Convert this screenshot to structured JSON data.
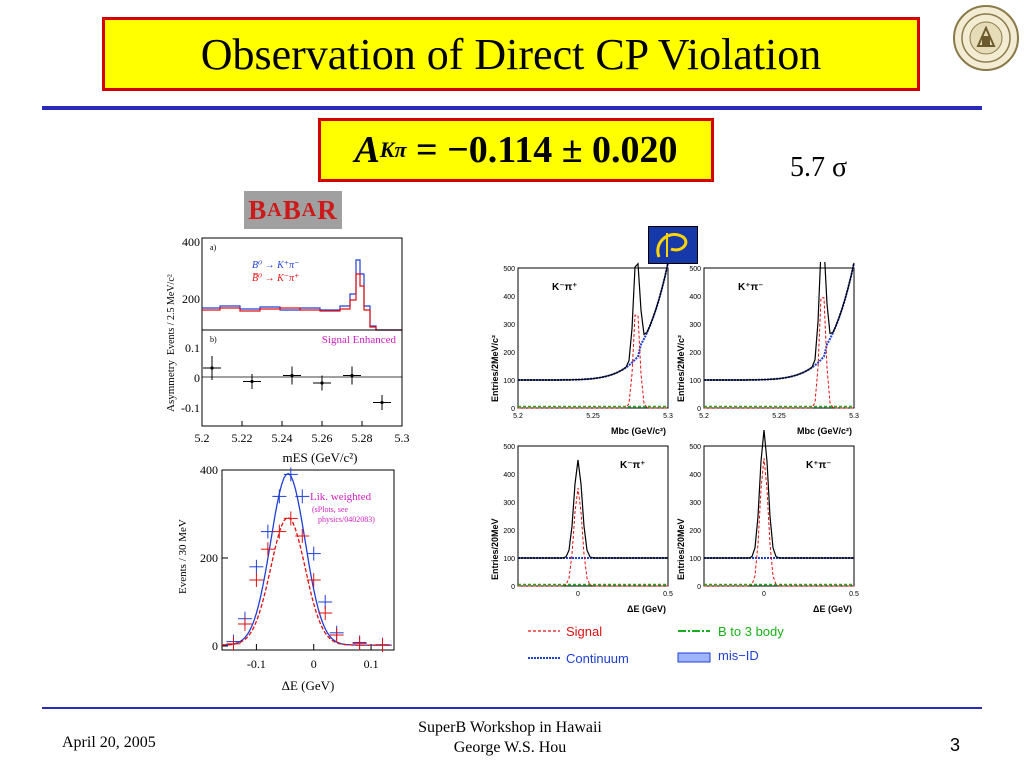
{
  "slide": {
    "title": "Observation of Direct CP Violation",
    "formula": {
      "symbol": "A",
      "subscript": "Kπ",
      "value": "= −0.114 ± 0.020"
    },
    "significance": "5.7 σ"
  },
  "logos": {
    "babar": {
      "big1": "B",
      "small1": "A",
      "big2": "B",
      "small2": "A",
      "big3": "R"
    }
  },
  "babar_plots": {
    "panel_a": {
      "tag": "a)",
      "ylabel": "Events / 2.5 MeV/c²",
      "yticks": [
        "400",
        "200"
      ],
      "legend": [
        "B⁰ → K⁺π⁻",
        "B̅⁰ → K⁻π⁺"
      ]
    },
    "panel_b": {
      "tag": "b)",
      "label": "Signal Enhanced",
      "ylabel": "Asymmetry",
      "yticks": [
        "0.1",
        "0",
        "-0.1"
      ],
      "xticks": [
        "5.2",
        "5.22",
        "5.24",
        "5.26",
        "5.28",
        "5.3"
      ],
      "xlabel": "mES (GeV/c²)",
      "chart_data": {
        "type": "scatter",
        "x": [
          5.205,
          5.225,
          5.245,
          5.26,
          5.275,
          5.29
        ],
        "y": [
          0.03,
          -0.015,
          0.005,
          -0.02,
          0.005,
          -0.085
        ],
        "yerr": [
          0.04,
          0.025,
          0.03,
          0.025,
          0.03,
          0.025
        ]
      }
    },
    "panel_c": {
      "ylabel": "Events / 30 MeV",
      "yticks": [
        "400",
        "200",
        "0"
      ],
      "xticks": [
        "-0.1",
        "0",
        "0.1"
      ],
      "xlabel": "ΔE (GeV)",
      "label": "Lik. weighted",
      "note1": "(sPlots, see",
      "note2": "physics/0402083)",
      "chart_data": {
        "type": "line",
        "series": [
          {
            "x": [
              -0.14,
              -0.12,
              -0.1,
              -0.08,
              -0.06,
              -0.04,
              -0.02,
              0,
              0.02,
              0.04,
              0.08,
              0.12
            ],
            "y": [
              10,
              62,
              180,
              260,
              340,
              390,
              340,
              210,
              100,
              30,
              8,
              3
            ]
          },
          {
            "x": [
              -0.14,
              -0.12,
              -0.1,
              -0.08,
              -0.06,
              -0.04,
              -0.02,
              0,
              0.02,
              0.04,
              0.08,
              0.12
            ],
            "y": [
              5,
              50,
              150,
              220,
              260,
              290,
              250,
              150,
              75,
              25,
              6,
              2
            ]
          }
        ]
      }
    }
  },
  "belle_plots": {
    "yl_mbc": "Entries/2MeV/c²",
    "yl_de": "Entries/20MeV",
    "mbc_xticks": [
      "5.2",
      "5.25",
      "5.3"
    ],
    "de_xticks": [
      "0",
      "0.5"
    ],
    "mbc_yticks": [
      "500",
      "400",
      "300",
      "200",
      "100",
      "0"
    ],
    "x_mbc": "Mbc (GeV/c²)",
    "x_de": "ΔE (GeV)",
    "lab_kmpip": "K⁻π⁺",
    "lab_kppim": "K⁺π⁻",
    "legend": {
      "signal": "Signal",
      "b3body": "B to 3 body",
      "continuum": "Continuum",
      "misid": "mis−ID"
    }
  },
  "footer": {
    "date": "April 20, 2005",
    "line1": "SuperB Workshop in Hawaii",
    "line2": "George W.S. Hou",
    "page": "3"
  }
}
